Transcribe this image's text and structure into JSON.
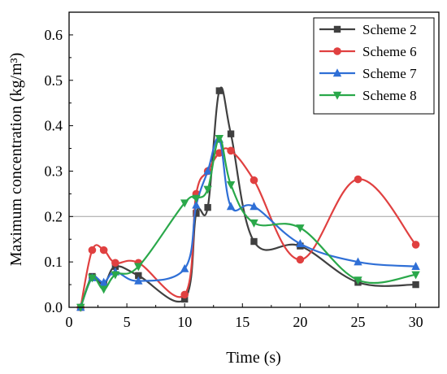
{
  "chart_data": {
    "type": "line",
    "title": "",
    "xlabel": "Time (s)",
    "ylabel": "Maximum concentration (kg/m³)",
    "xlim": [
      0,
      32
    ],
    "ylim": [
      0,
      0.65
    ],
    "xticks": [
      0,
      5,
      10,
      15,
      20,
      25,
      30
    ],
    "xtick_labels": [
      "0",
      "5",
      "10",
      "15",
      "20",
      "25",
      "30"
    ],
    "yticks": [
      0.0,
      0.1,
      0.2,
      0.3,
      0.4,
      0.5,
      0.6
    ],
    "ytick_labels": [
      "0.0",
      "0.1",
      "0.2",
      "0.3",
      "0.4",
      "0.5",
      "0.6"
    ],
    "grid": false,
    "reference_line_y": 0.2,
    "legend_position": "top-right",
    "series": [
      {
        "name": "Scheme 2",
        "color": "#404040",
        "marker": "square",
        "x": [
          1,
          2,
          3,
          4,
          6,
          10,
          11,
          12,
          13,
          14,
          16,
          20,
          25,
          30
        ],
        "y": [
          0.0,
          0.068,
          0.05,
          0.09,
          0.07,
          0.018,
          0.207,
          0.22,
          0.477,
          0.382,
          0.145,
          0.135,
          0.055,
          0.05
        ]
      },
      {
        "name": "Scheme 6",
        "color": "#e04040",
        "marker": "circle",
        "x": [
          1,
          2,
          3,
          4,
          6,
          10,
          11,
          12,
          13,
          14,
          16,
          20,
          25,
          30
        ],
        "y": [
          0.0,
          0.126,
          0.126,
          0.098,
          0.098,
          0.028,
          0.25,
          0.3,
          0.34,
          0.345,
          0.28,
          0.105,
          0.282,
          0.138
        ]
      },
      {
        "name": "Scheme 7",
        "color": "#2f6fd6",
        "marker": "triangle-up",
        "x": [
          1,
          2,
          3,
          4,
          6,
          10,
          11,
          12,
          13,
          14,
          16,
          20,
          25,
          30
        ],
        "y": [
          0.0,
          0.065,
          0.055,
          0.078,
          0.058,
          0.085,
          0.225,
          0.3,
          0.37,
          0.222,
          0.222,
          0.14,
          0.1,
          0.09
        ]
      },
      {
        "name": "Scheme 8",
        "color": "#2aa84a",
        "marker": "triangle-down",
        "x": [
          1,
          2,
          3,
          4,
          6,
          10,
          11,
          12,
          13,
          14,
          16,
          20,
          25,
          30
        ],
        "y": [
          0.0,
          0.065,
          0.04,
          0.072,
          0.09,
          0.23,
          0.24,
          0.26,
          0.372,
          0.27,
          0.186,
          0.175,
          0.06,
          0.072
        ]
      }
    ]
  }
}
